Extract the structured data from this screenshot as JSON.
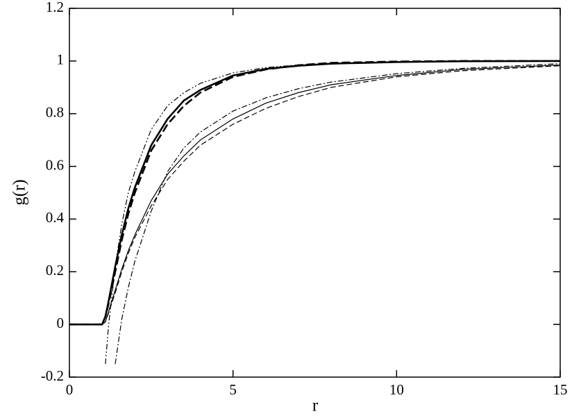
{
  "chart_data": {
    "type": "line",
    "xlabel": "r",
    "ylabel": "g(r)",
    "x": [
      0,
      0.5,
      1,
      1.1,
      1.2,
      1.4,
      1.6,
      1.8,
      2,
      2.5,
      3,
      3.5,
      4,
      5,
      6,
      7,
      8,
      10,
      12,
      15
    ],
    "series": [
      {
        "color": "#000000",
        "width": 2.6,
        "dash": "none",
        "values": [
          0,
          0,
          0,
          0.03,
          0.09,
          0.22,
          0.34,
          0.44,
          0.52,
          0.68,
          0.78,
          0.85,
          0.89,
          0.945,
          0.97,
          0.982,
          0.99,
          0.996,
          0.999,
          1.0
        ]
      },
      {
        "color": "#000000",
        "width": 2.6,
        "dash": "12 5",
        "values": [
          0,
          0,
          0,
          0.03,
          0.08,
          0.2,
          0.32,
          0.42,
          0.5,
          0.66,
          0.76,
          0.83,
          0.88,
          0.94,
          0.968,
          0.984,
          0.993,
          0.998,
          1.0,
          1.0
        ]
      },
      {
        "color": "#000000",
        "width": 1.2,
        "dash": "8 3 2 3 2 3",
        "values": [
          null,
          null,
          null,
          -0.15,
          0.0,
          0.22,
          0.38,
          0.5,
          0.58,
          0.74,
          0.83,
          0.88,
          0.915,
          0.955,
          0.975,
          0.985,
          0.99,
          0.996,
          0.998,
          1.0
        ]
      },
      {
        "color": "#000000",
        "width": 1.2,
        "dash": "none",
        "values": [
          0,
          0,
          0,
          0.01,
          0.05,
          0.13,
          0.21,
          0.28,
          0.34,
          0.47,
          0.57,
          0.64,
          0.7,
          0.78,
          0.84,
          0.88,
          0.91,
          0.945,
          0.968,
          0.985
        ]
      },
      {
        "color": "#000000",
        "width": 1.2,
        "dash": "8 4",
        "values": [
          0,
          0,
          0,
          0.01,
          0.045,
          0.12,
          0.2,
          0.27,
          0.33,
          0.45,
          0.55,
          0.62,
          0.68,
          0.76,
          0.82,
          0.865,
          0.9,
          0.94,
          0.963,
          0.982
        ]
      },
      {
        "color": "#000000",
        "width": 1.2,
        "dash": "8 3 2 3",
        "values": [
          null,
          null,
          null,
          null,
          null,
          -0.15,
          0.02,
          0.14,
          0.24,
          0.43,
          0.58,
          0.67,
          0.73,
          0.81,
          0.86,
          0.895,
          0.92,
          0.952,
          0.972,
          0.99
        ]
      }
    ],
    "xlim": [
      0,
      15
    ],
    "xticks": [
      0,
      5,
      10,
      15
    ],
    "ylim": [
      -0.2,
      1.2
    ],
    "yticks": [
      -0.2,
      0,
      0.2,
      0.4,
      0.6,
      0.8,
      1,
      1.2
    ],
    "grid": false
  }
}
